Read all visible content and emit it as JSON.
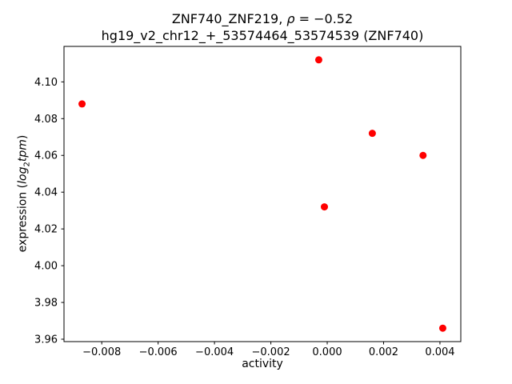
{
  "chart_data": {
    "type": "scatter",
    "title": "ZNF740_ZNF219, ρ = −0.52",
    "title_parts": {
      "pre": "ZNF740_ZNF219, ",
      "rho": "ρ",
      "post": " = −0.52"
    },
    "subtitle": "hg19_v2_chr12_+_53574464_53574539 (ZNF740)",
    "xlabel": "activity",
    "ylabel": "expression (log2tpm)",
    "ylabel_parts": {
      "pre": "expression (",
      "log": "log",
      "sub": "2",
      "var": "tpm",
      "post": ")"
    },
    "marker_color": "#ff0000",
    "marker_radius": 4.5,
    "axis_color": "#000000",
    "grid": false,
    "legend": null,
    "xlim": [
      -0.00934,
      0.00474
    ],
    "ylim": [
      3.9587,
      4.1193
    ],
    "xticks": [
      -0.008,
      -0.006,
      -0.004,
      -0.002,
      0.0,
      0.002,
      0.004
    ],
    "yticks": [
      3.96,
      3.98,
      4.0,
      4.02,
      4.04,
      4.06,
      4.08,
      4.1
    ],
    "points": [
      {
        "x": -0.0087,
        "y": 4.088
      },
      {
        "x": -0.0003,
        "y": 4.112
      },
      {
        "x": -0.0001,
        "y": 4.032
      },
      {
        "x": 0.0016,
        "y": 4.072
      },
      {
        "x": 0.0034,
        "y": 4.06
      },
      {
        "x": 0.0041,
        "y": 3.966
      }
    ]
  }
}
